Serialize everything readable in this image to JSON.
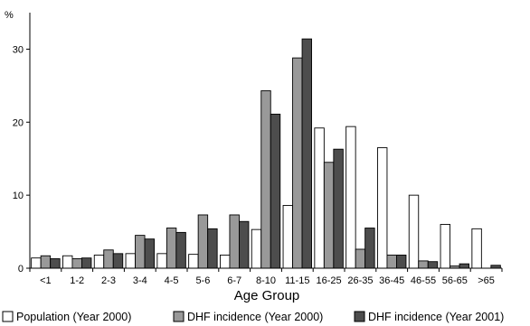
{
  "chart_data": {
    "type": "bar",
    "title": "",
    "xlabel": "Age Group",
    "ylabel": "%",
    "ylim": [
      0,
      35
    ],
    "yticks": [
      0,
      10,
      20,
      30
    ],
    "grid": false,
    "legend_position": "bottom",
    "categories": [
      "<1",
      "1-2",
      "2-3",
      "3-4",
      "4-5",
      "5-6",
      "6-7",
      "8-10",
      "11-15",
      "16-25",
      "26-35",
      "36-45",
      "46-55",
      "56-65",
      ">65"
    ],
    "series": [
      {
        "name": "Population (Year 2000)",
        "color": "#ffffff",
        "values": [
          1.4,
          1.7,
          1.8,
          2.0,
          2.0,
          1.9,
          1.8,
          5.3,
          8.6,
          19.2,
          19.4,
          16.5,
          10.0,
          6.0,
          5.4
        ]
      },
      {
        "name": "DHF incidence (Year 2000)",
        "color": "#999999",
        "values": [
          1.7,
          1.3,
          2.5,
          4.5,
          5.5,
          7.3,
          7.3,
          24.3,
          28.8,
          14.5,
          2.6,
          1.8,
          1.0,
          0.3,
          0.0
        ]
      },
      {
        "name": "DHF incidence (Year 2001)",
        "color": "#4d4d4d",
        "values": [
          1.3,
          1.4,
          2.0,
          4.0,
          4.9,
          5.4,
          6.4,
          21.1,
          31.4,
          16.3,
          5.5,
          1.8,
          0.9,
          0.6,
          0.4
        ]
      }
    ]
  }
}
